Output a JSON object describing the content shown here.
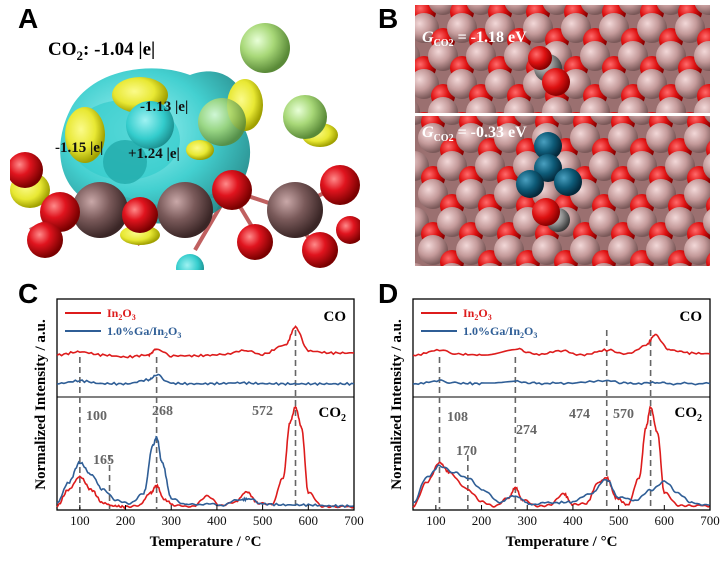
{
  "panels": {
    "A": {
      "letter": "A",
      "co2_label": "CO",
      "co2_sub": "2",
      "co2_value": ": -1.04 |e|",
      "charges": [
        "-1.13 |e|",
        "-1.15 |e|",
        "+1.24 |e|"
      ],
      "colors": {
        "cyan": "#33cccc",
        "yellow": "#e8e833",
        "red": "#e0141e",
        "brown": "#7a5a5a",
        "green": "#a8d878"
      }
    },
    "B": {
      "letter": "B",
      "energy_top": {
        "symbol": "G",
        "sub": "CO2",
        "value": " = -1.18 eV"
      },
      "energy_bottom": {
        "symbol": "G",
        "sub": "CO2",
        "value": " = -0.33 eV"
      },
      "colors": {
        "red": "#dd1111",
        "pink": "#c49a9a",
        "teal": "#0e5b78"
      }
    },
    "C": {
      "letter": "C",
      "peak_labels": [
        "100",
        "165",
        "268",
        "572"
      ]
    },
    "D": {
      "letter": "D",
      "peak_labels": [
        "108",
        "170",
        "274",
        "474",
        "570"
      ]
    }
  },
  "chart_data": [
    {
      "type": "line",
      "panel": "C",
      "xlabel": "Temperature / °C",
      "ylabel": "Normalized Intensity / a.u.",
      "xlim": [
        50,
        700
      ],
      "xticks": [
        100,
        200,
        300,
        400,
        500,
        600,
        700
      ],
      "legend": [
        "In2O3",
        "1.0%Ga/In2O3"
      ],
      "legend_placement": "top-left",
      "subplots": [
        {
          "label": "CO",
          "series": [
            {
              "name": "In2O3",
              "color": "#dd1c1c",
              "x": [
                50,
                100,
                150,
                200,
                250,
                268,
                300,
                350,
                400,
                460,
                500,
                550,
                572,
                600,
                650,
                700
              ],
              "y": [
                0.3,
                0.38,
                0.3,
                0.25,
                0.3,
                0.45,
                0.28,
                0.28,
                0.3,
                0.4,
                0.32,
                0.55,
                1.0,
                0.4,
                0.35,
                0.35
              ]
            },
            {
              "name": "1.0%Ga/In2O3",
              "color": "#2f5e96",
              "x": [
                50,
                100,
                150,
                200,
                250,
                268,
                300,
                350,
                400,
                450,
                500,
                550,
                600,
                650,
                700
              ],
              "y": [
                0.05,
                0.15,
                0.05,
                0.04,
                0.18,
                0.35,
                0.06,
                0.04,
                0.05,
                0.08,
                0.05,
                0.04,
                0.04,
                0.04,
                0.04
              ]
            }
          ]
        },
        {
          "label": "CO2",
          "series": [
            {
              "name": "In2O3",
              "color": "#dd1c1c",
              "x": [
                50,
                75,
                100,
                125,
                150,
                175,
                200,
                230,
                255,
                268,
                285,
                310,
                350,
                380,
                410,
                440,
                465,
                490,
                520,
                545,
                560,
                572,
                585,
                600,
                630,
                660,
                700
              ],
              "y": [
                0.02,
                0.18,
                0.31,
                0.18,
                0.05,
                0.02,
                0.01,
                0.03,
                0.15,
                0.22,
                0.08,
                0.02,
                0.02,
                0.12,
                0.02,
                0.06,
                0.16,
                0.05,
                0.03,
                0.3,
                0.85,
                1.0,
                0.8,
                0.15,
                0.02,
                0.01,
                0.01
              ]
            },
            {
              "name": "1.0%Ga/In2O3",
              "color": "#2f5e96",
              "x": [
                50,
                75,
                100,
                125,
                150,
                180,
                210,
                240,
                260,
                268,
                280,
                300,
                330,
                370,
                410,
                450,
                470,
                500,
                550,
                600,
                650,
                700
              ],
              "y": [
                0.05,
                0.25,
                0.45,
                0.33,
                0.18,
                0.08,
                0.04,
                0.15,
                0.62,
                0.7,
                0.45,
                0.1,
                0.03,
                0.04,
                0.03,
                0.08,
                0.09,
                0.04,
                0.03,
                0.03,
                0.02,
                0.02
              ]
            }
          ]
        }
      ]
    },
    {
      "type": "line",
      "panel": "D",
      "xlabel": "Temperature / °C",
      "ylabel": "Normalized Intensity / a.u.",
      "xlim": [
        50,
        700
      ],
      "xticks": [
        100,
        200,
        300,
        400,
        500,
        600,
        700
      ],
      "legend": [
        "In2O3",
        "1.0%Ga/In2O3"
      ],
      "legend_placement": "top-left",
      "subplots": [
        {
          "label": "CO",
          "series": [
            {
              "name": "In2O3",
              "color": "#dd1c1c",
              "x": [
                50,
                108,
                150,
                200,
                274,
                320,
                380,
                420,
                474,
                520,
                560,
                580,
                610,
                650,
                700
              ],
              "y": [
                0.3,
                0.42,
                0.32,
                0.3,
                0.45,
                0.32,
                0.4,
                0.3,
                0.42,
                0.32,
                0.55,
                0.8,
                0.45,
                0.35,
                0.33
              ]
            },
            {
              "name": "1.0%Ga/In2O3",
              "color": "#2f5e96",
              "x": [
                50,
                108,
                150,
                200,
                274,
                320,
                380,
                474,
                520,
                580,
                620,
                700
              ],
              "y": [
                0.05,
                0.14,
                0.06,
                0.05,
                0.12,
                0.06,
                0.06,
                0.15,
                0.06,
                0.07,
                0.05,
                0.05
              ]
            }
          ]
        },
        {
          "label": "CO2",
          "series": [
            {
              "name": "In2O3",
              "color": "#dd1c1c",
              "x": [
                50,
                80,
                108,
                130,
                170,
                200,
                230,
                260,
                274,
                290,
                320,
                350,
                380,
                400,
                430,
                455,
                474,
                495,
                520,
                545,
                560,
                570,
                585,
                600,
                630,
                660,
                700
              ],
              "y": [
                0.02,
                0.25,
                0.45,
                0.35,
                0.18,
                0.06,
                0.02,
                0.1,
                0.2,
                0.08,
                0.02,
                0.03,
                0.14,
                0.03,
                0.05,
                0.25,
                0.3,
                0.1,
                0.03,
                0.3,
                0.8,
                1.0,
                0.75,
                0.15,
                0.03,
                0.02,
                0.02
              ]
            },
            {
              "name": "1.0%Ga/In2O3",
              "color": "#2f5e96",
              "x": [
                50,
                80,
                108,
                140,
                170,
                200,
                240,
                274,
                310,
                350,
                400,
                440,
                474,
                500,
                540,
                570,
                600,
                630,
                660,
                700
              ],
              "y": [
                0.05,
                0.3,
                0.42,
                0.35,
                0.3,
                0.18,
                0.06,
                0.12,
                0.04,
                0.05,
                0.06,
                0.15,
                0.28,
                0.1,
                0.08,
                0.18,
                0.26,
                0.15,
                0.05,
                0.03
              ]
            }
          ]
        }
      ]
    }
  ]
}
